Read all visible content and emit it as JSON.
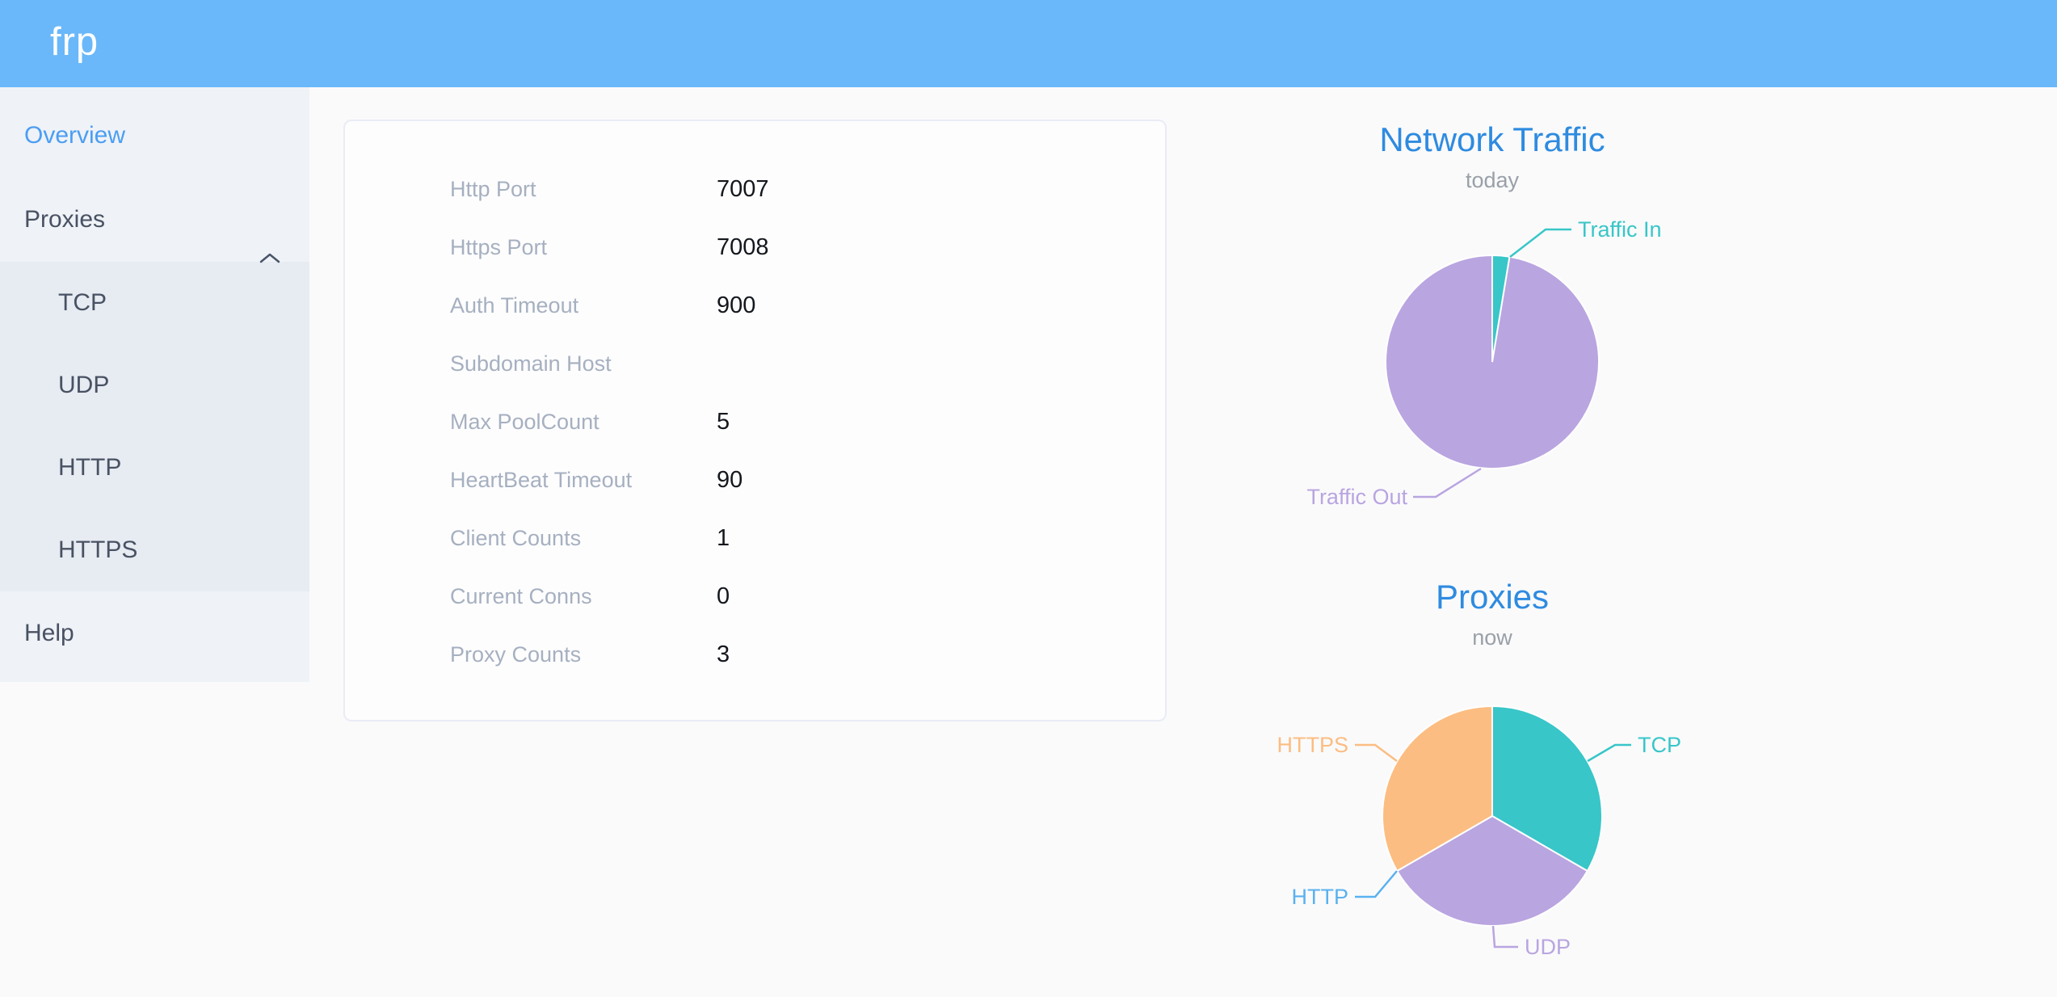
{
  "header": {
    "logo": "frp",
    "bg_color": "#6ab8f9"
  },
  "sidebar": {
    "bg_color": "#eff2f7",
    "submenu_bg_color": "#e7ebf2",
    "active_color": "#4b9ef2",
    "overview": {
      "label": "Overview",
      "active": true
    },
    "proxies": {
      "label": "Proxies",
      "expanded": true,
      "children": [
        {
          "label": "TCP"
        },
        {
          "label": "UDP"
        },
        {
          "label": "HTTP"
        },
        {
          "label": "HTTPS"
        }
      ]
    },
    "help": {
      "label": "Help"
    }
  },
  "overview_card": {
    "rows": [
      {
        "label": "Http Port",
        "value": "7007"
      },
      {
        "label": "Https Port",
        "value": "7008"
      },
      {
        "label": "Auth Timeout",
        "value": "900"
      },
      {
        "label": "Subdomain Host",
        "value": ""
      },
      {
        "label": "Max PoolCount",
        "value": "5"
      },
      {
        "label": "HeartBeat Timeout",
        "value": "90"
      },
      {
        "label": "Client Counts",
        "value": "1"
      },
      {
        "label": "Current Conns",
        "value": "0"
      },
      {
        "label": "Proxy Counts",
        "value": "3"
      }
    ]
  },
  "chart_data": [
    {
      "type": "pie",
      "title": "Network Traffic",
      "subtitle": "today",
      "legend_position": "none",
      "labels": "outside with leader lines",
      "values_note": "percent share estimated from slice angles; absolute byte values not shown",
      "series": [
        {
          "name": "Traffic In",
          "value": 2.6,
          "color": "#38c6c8"
        },
        {
          "name": "Traffic Out",
          "value": 97.4,
          "color": "#b9a5e0"
        }
      ]
    },
    {
      "type": "pie",
      "title": "Proxies",
      "subtitle": "now",
      "legend_position": "none",
      "labels": "outside with leader lines",
      "values_note": "proxy counts; three equal slices, HTTP slice is zero-sized (label points to boundary)",
      "series": [
        {
          "name": "TCP",
          "value": 1,
          "color": "#38c6c8"
        },
        {
          "name": "UDP",
          "value": 1,
          "color": "#b9a5e0"
        },
        {
          "name": "HTTP",
          "value": 0,
          "color": "#5ab1ef"
        },
        {
          "name": "HTTPS",
          "value": 1,
          "color": "#fcbd82"
        }
      ]
    }
  ]
}
